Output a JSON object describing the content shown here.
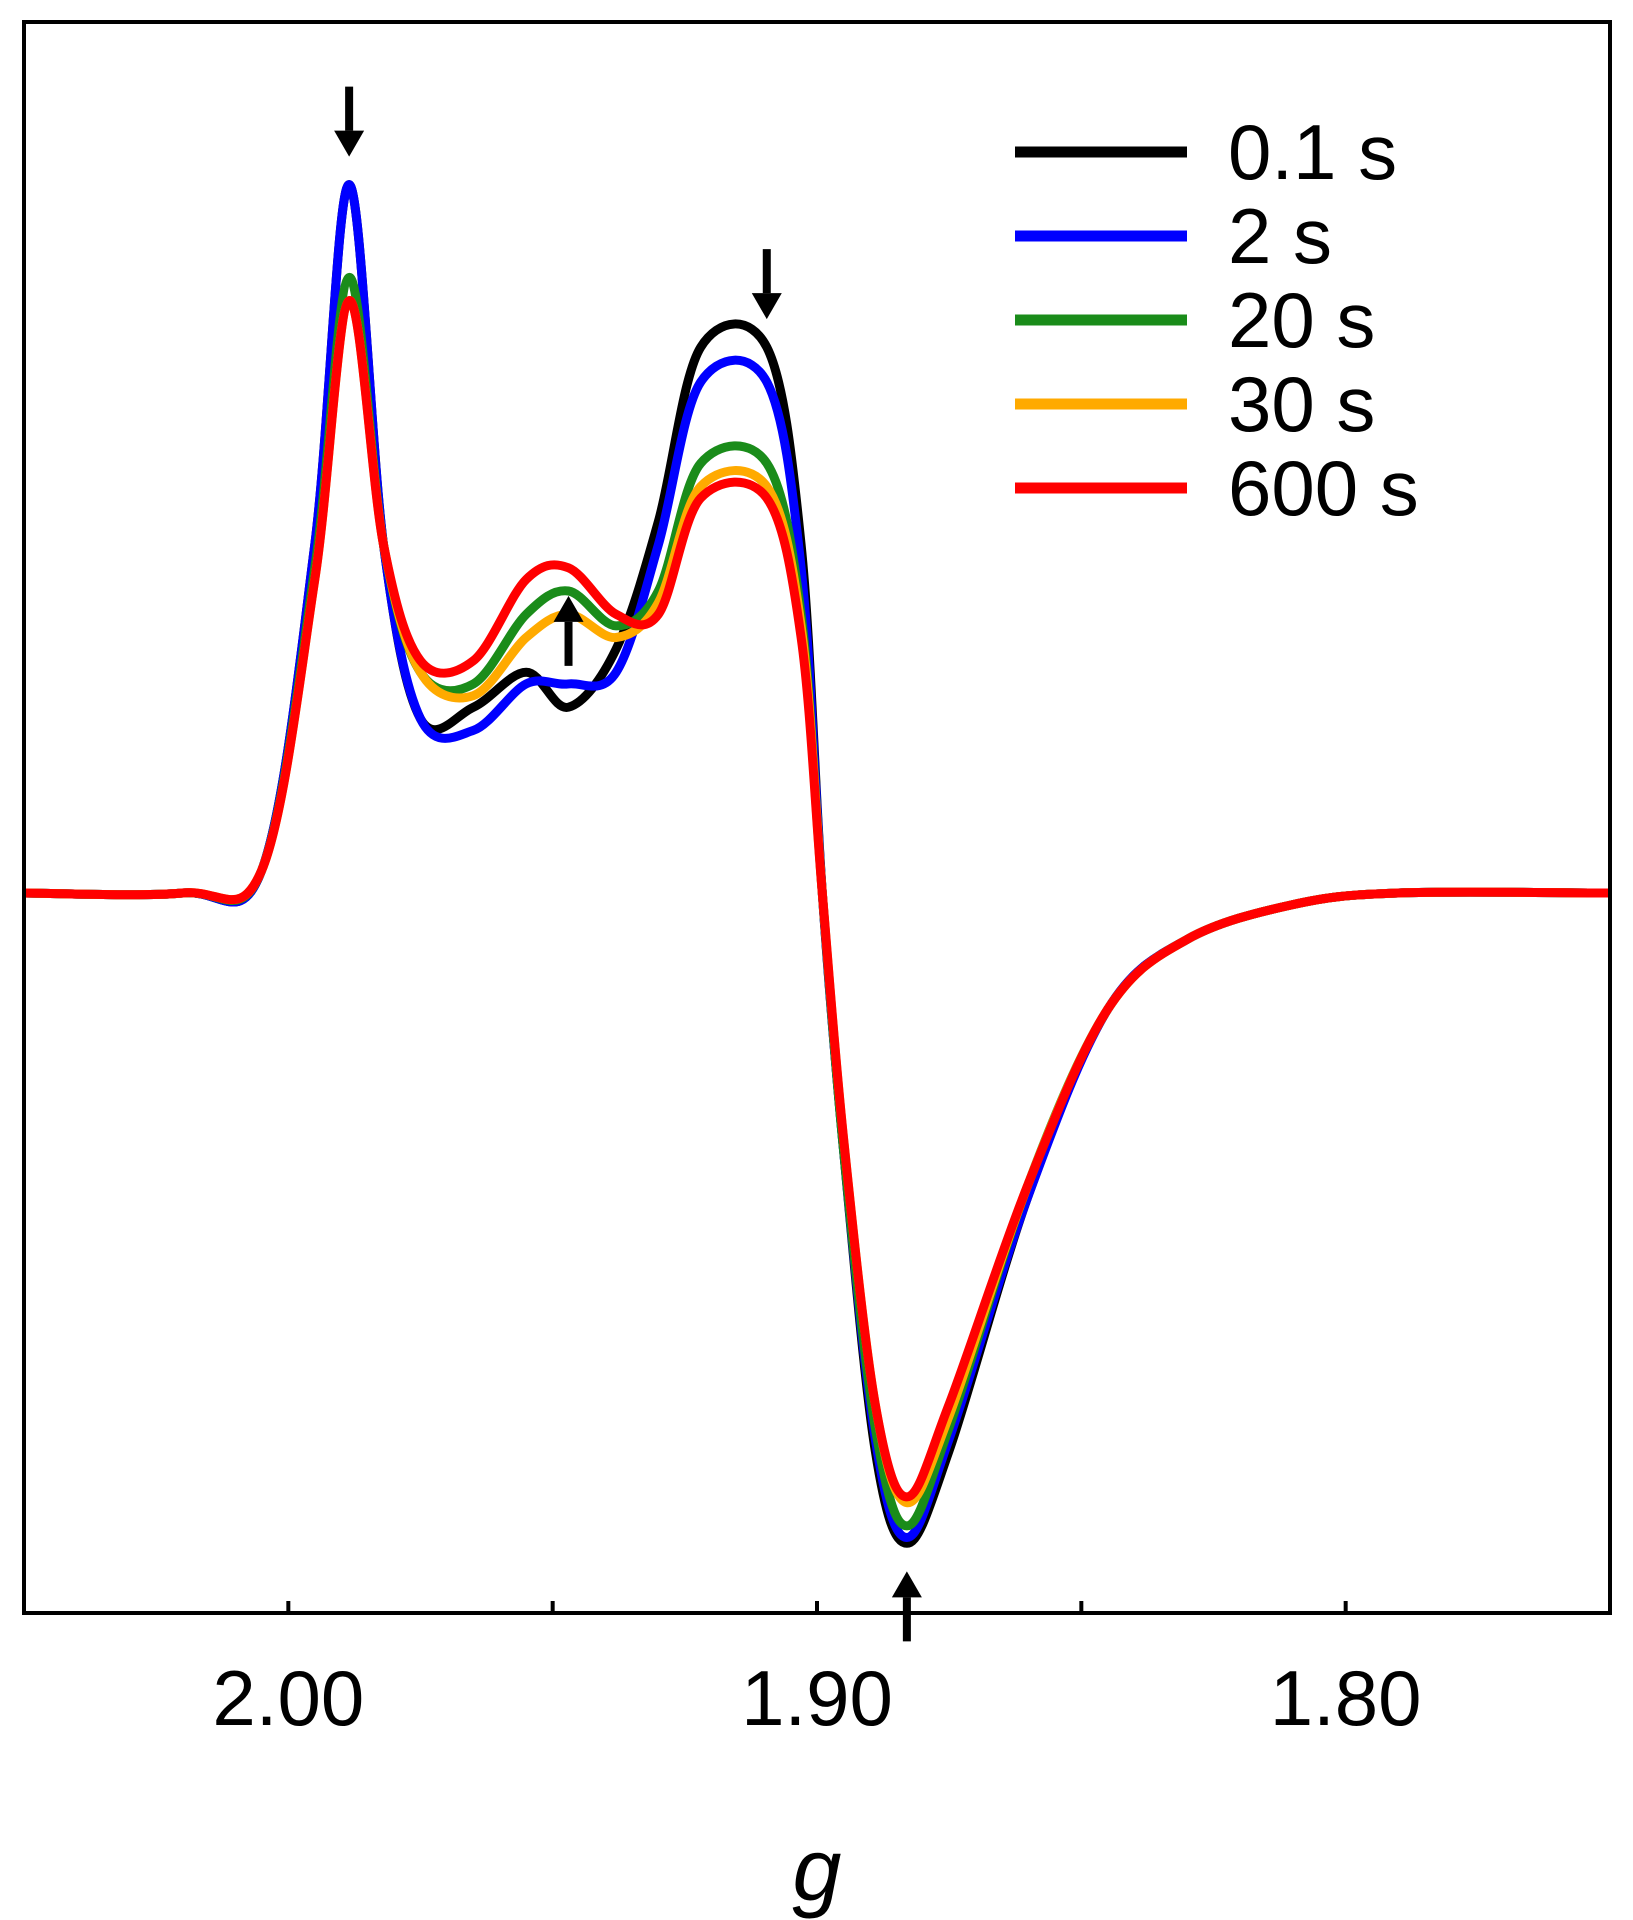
{
  "chart_data": {
    "type": "line",
    "title": "",
    "xlabel": "g",
    "ylabel": "",
    "xlim": [
      2.05,
      1.75
    ],
    "ylim": [
      -0.62,
      0.75
    ],
    "x_reversed": true,
    "y_ticks_shown": false,
    "grid": false,
    "legend_position": "top-right",
    "x_ticks": [
      2.05,
      2.0,
      1.95,
      1.9,
      1.85,
      1.8,
      1.75
    ],
    "x_tick_labels": [
      {
        "value": 2.0,
        "label": "2.00"
      },
      {
        "value": 1.9,
        "label": "1.90"
      },
      {
        "value": 1.8,
        "label": "1.80"
      }
    ],
    "series": [
      {
        "name": "0.1 s",
        "color": "#000000",
        "x": [
          2.05,
          2.02,
          2.005,
          1.995,
          1.9885,
          1.982,
          1.975,
          1.965,
          1.955,
          1.947,
          1.938,
          1.93,
          1.922,
          1.9095,
          1.903,
          1.899,
          1.895,
          1.889,
          1.883,
          1.875,
          1.86,
          1.845,
          1.83,
          1.81,
          1.79,
          1.75
        ],
        "y": [
          0.0,
          0.0,
          0.02,
          0.3,
          0.61,
          0.3,
          0.15,
          0.16,
          0.19,
          0.16,
          0.21,
          0.32,
          0.47,
          0.47,
          0.3,
          0.0,
          -0.22,
          -0.48,
          -0.56,
          -0.48,
          -0.26,
          -0.1,
          -0.04,
          -0.01,
          0.0,
          0.0
        ]
      },
      {
        "name": "2 s",
        "color": "#0000ff",
        "x": [
          2.05,
          2.02,
          2.005,
          1.995,
          1.9885,
          1.982,
          1.975,
          1.965,
          1.955,
          1.947,
          1.938,
          1.93,
          1.922,
          1.9095,
          1.903,
          1.899,
          1.895,
          1.889,
          1.883,
          1.875,
          1.86,
          1.845,
          1.83,
          1.81,
          1.79,
          1.75
        ],
        "y": [
          0.0,
          0.0,
          0.02,
          0.3,
          0.61,
          0.3,
          0.15,
          0.14,
          0.18,
          0.18,
          0.19,
          0.3,
          0.44,
          0.44,
          0.28,
          0.0,
          -0.22,
          -0.47,
          -0.555,
          -0.47,
          -0.26,
          -0.1,
          -0.04,
          -0.01,
          0.0,
          0.0
        ]
      },
      {
        "name": "20 s",
        "color": "#1a8c1a",
        "x": [
          2.05,
          2.02,
          2.005,
          1.995,
          1.9885,
          1.982,
          1.975,
          1.965,
          1.955,
          1.947,
          1.938,
          1.93,
          1.922,
          1.9095,
          1.903,
          1.899,
          1.895,
          1.889,
          1.883,
          1.875,
          1.86,
          1.845,
          1.83,
          1.81,
          1.79,
          1.75
        ],
        "y": [
          0.0,
          0.0,
          0.02,
          0.28,
          0.53,
          0.3,
          0.19,
          0.18,
          0.24,
          0.26,
          0.23,
          0.26,
          0.37,
          0.37,
          0.24,
          0.0,
          -0.22,
          -0.46,
          -0.545,
          -0.46,
          -0.25,
          -0.1,
          -0.04,
          -0.01,
          0.0,
          0.0
        ]
      },
      {
        "name": "30 s",
        "color": "#ffaa00",
        "x": [
          2.05,
          2.02,
          2.005,
          1.995,
          1.9885,
          1.982,
          1.975,
          1.965,
          1.955,
          1.947,
          1.938,
          1.93,
          1.922,
          1.9095,
          1.903,
          1.899,
          1.895,
          1.889,
          1.883,
          1.875,
          1.86,
          1.845,
          1.83,
          1.81,
          1.79,
          1.75
        ],
        "y": [
          0.0,
          0.0,
          0.02,
          0.27,
          0.51,
          0.3,
          0.19,
          0.17,
          0.22,
          0.24,
          0.22,
          0.25,
          0.35,
          0.35,
          0.23,
          0.0,
          -0.21,
          -0.44,
          -0.525,
          -0.45,
          -0.25,
          -0.1,
          -0.04,
          -0.01,
          0.0,
          0.0
        ]
      },
      {
        "name": "600 s",
        "color": "#ff0000",
        "x": [
          2.05,
          2.02,
          2.005,
          1.995,
          1.9885,
          1.982,
          1.975,
          1.965,
          1.955,
          1.947,
          1.938,
          1.93,
          1.922,
          1.9095,
          1.903,
          1.899,
          1.895,
          1.889,
          1.883,
          1.875,
          1.86,
          1.845,
          1.83,
          1.81,
          1.79,
          1.75
        ],
        "y": [
          0.0,
          0.0,
          0.02,
          0.27,
          0.51,
          0.3,
          0.2,
          0.2,
          0.27,
          0.28,
          0.24,
          0.24,
          0.34,
          0.34,
          0.22,
          0.0,
          -0.21,
          -0.44,
          -0.52,
          -0.44,
          -0.25,
          -0.1,
          -0.04,
          -0.01,
          0.0,
          0.0
        ]
      }
    ],
    "annotations": [
      {
        "type": "arrow",
        "direction": "down",
        "x": 1.9885,
        "y": 0.61
      },
      {
        "type": "arrow",
        "direction": "up",
        "x": 1.947,
        "y": 0.28
      },
      {
        "type": "arrow",
        "direction": "down",
        "x": 1.9095,
        "y": 0.47
      },
      {
        "type": "arrow",
        "direction": "up",
        "x": 1.883,
        "y": -0.56
      }
    ]
  }
}
